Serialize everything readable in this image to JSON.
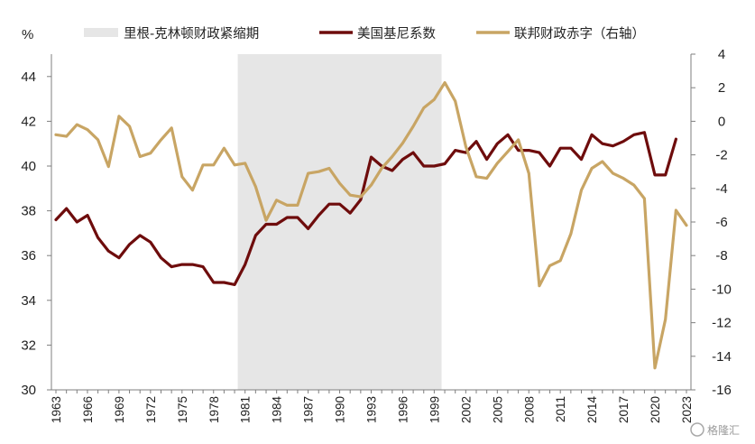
{
  "chart_data": {
    "type": "line",
    "title": "",
    "ylabel_left": "%",
    "ylabel_right": "",
    "x": [
      1963,
      1964,
      1965,
      1966,
      1967,
      1968,
      1969,
      1970,
      1971,
      1972,
      1973,
      1974,
      1975,
      1976,
      1977,
      1978,
      1979,
      1980,
      1981,
      1982,
      1983,
      1984,
      1985,
      1986,
      1987,
      1988,
      1989,
      1990,
      1991,
      1992,
      1993,
      1994,
      1995,
      1996,
      1997,
      1998,
      1999,
      2000,
      2001,
      2002,
      2003,
      2004,
      2005,
      2006,
      2007,
      2008,
      2009,
      2010,
      2011,
      2012,
      2013,
      2014,
      2015,
      2016,
      2017,
      2018,
      2019,
      2020,
      2021,
      2022,
      2023
    ],
    "ylim_left": [
      30,
      45
    ],
    "yticks_left": [
      "30",
      "32",
      "34",
      "36",
      "38",
      "40",
      "42",
      "44"
    ],
    "ylim_right": [
      -16,
      4
    ],
    "yticks_right": [
      "-16",
      "-14",
      "-12",
      "-10",
      "-8",
      "-6",
      "-4",
      "-2",
      "0",
      "2",
      "4"
    ],
    "xticks": [
      "1963",
      "1966",
      "1969",
      "1972",
      "1975",
      "1978",
      "1981",
      "1984",
      "1987",
      "1990",
      "1993",
      "1996",
      "1999",
      "2002",
      "2005",
      "2008",
      "2011",
      "2014",
      "2017",
      "2020",
      "2023"
    ],
    "shaded_span": {
      "label": "里根-克林顿财政紧缩期",
      "x_start": 1980.3,
      "x_end": 1999.7,
      "color": "#e6e6e6"
    },
    "series": [
      {
        "name": "美国基尼系数",
        "axis": "left",
        "color": "#6e0c0c",
        "x": [
          1963,
          1964,
          1965,
          1966,
          1967,
          1968,
          1969,
          1970,
          1971,
          1972,
          1973,
          1974,
          1975,
          1976,
          1977,
          1978,
          1979,
          1980,
          1981,
          1982,
          1983,
          1984,
          1985,
          1986,
          1987,
          1988,
          1989,
          1990,
          1991,
          1992,
          1993,
          1994,
          1995,
          1996,
          1997,
          1998,
          1999,
          2000,
          2001,
          2002,
          2003,
          2004,
          2005,
          2006,
          2007,
          2008,
          2009,
          2010,
          2011,
          2012,
          2013,
          2014,
          2015,
          2016,
          2017,
          2018,
          2019,
          2020,
          2021,
          2022
        ],
        "values": [
          37.6,
          38.1,
          37.5,
          37.8,
          36.8,
          36.2,
          35.9,
          36.5,
          36.9,
          36.6,
          35.9,
          35.5,
          35.6,
          35.6,
          35.5,
          34.8,
          34.8,
          34.7,
          35.6,
          36.9,
          37.4,
          37.4,
          37.7,
          37.7,
          37.2,
          37.8,
          38.3,
          38.3,
          37.9,
          38.5,
          40.4,
          40.0,
          39.8,
          40.3,
          40.6,
          40.0,
          40.0,
          40.1,
          40.7,
          40.6,
          41.1,
          40.3,
          41.0,
          41.4,
          40.7,
          40.7,
          40.6,
          40.0,
          40.8,
          40.8,
          40.3,
          41.4,
          41.0,
          40.9,
          41.1,
          41.4,
          41.5,
          39.6,
          39.6,
          41.2
        ]
      },
      {
        "name": "联邦财政赤字（右轴）",
        "axis": "right",
        "color": "#c8a564",
        "x": [
          1963,
          1964,
          1965,
          1966,
          1967,
          1968,
          1969,
          1970,
          1971,
          1972,
          1973,
          1974,
          1975,
          1976,
          1977,
          1978,
          1979,
          1980,
          1981,
          1982,
          1983,
          1984,
          1985,
          1986,
          1987,
          1988,
          1989,
          1990,
          1991,
          1992,
          1993,
          1994,
          1995,
          1996,
          1997,
          1998,
          1999,
          2000,
          2001,
          2002,
          2003,
          2004,
          2005,
          2006,
          2007,
          2008,
          2009,
          2010,
          2011,
          2012,
          2013,
          2014,
          2015,
          2016,
          2017,
          2018,
          2019,
          2020,
          2021,
          2022,
          2023
        ],
        "values": [
          -0.8,
          -0.9,
          -0.2,
          -0.5,
          -1.1,
          -2.7,
          0.3,
          -0.3,
          -2.1,
          -1.9,
          -1.1,
          -0.4,
          -3.3,
          -4.1,
          -2.6,
          -2.6,
          -1.6,
          -2.6,
          -2.5,
          -3.9,
          -5.9,
          -4.7,
          -5.0,
          -5.0,
          -3.1,
          -3.0,
          -2.8,
          -3.7,
          -4.4,
          -4.5,
          -3.8,
          -2.8,
          -2.1,
          -1.3,
          -0.3,
          0.8,
          1.3,
          2.3,
          1.2,
          -1.5,
          -3.3,
          -3.4,
          -2.5,
          -1.8,
          -1.1,
          -3.1,
          -9.8,
          -8.6,
          -8.3,
          -6.7,
          -4.1,
          -2.8,
          -2.4,
          -3.1,
          -3.4,
          -3.8,
          -4.6,
          -14.7,
          -11.8,
          -5.3,
          -6.2
        ]
      }
    ]
  },
  "watermark": "格隆汇"
}
